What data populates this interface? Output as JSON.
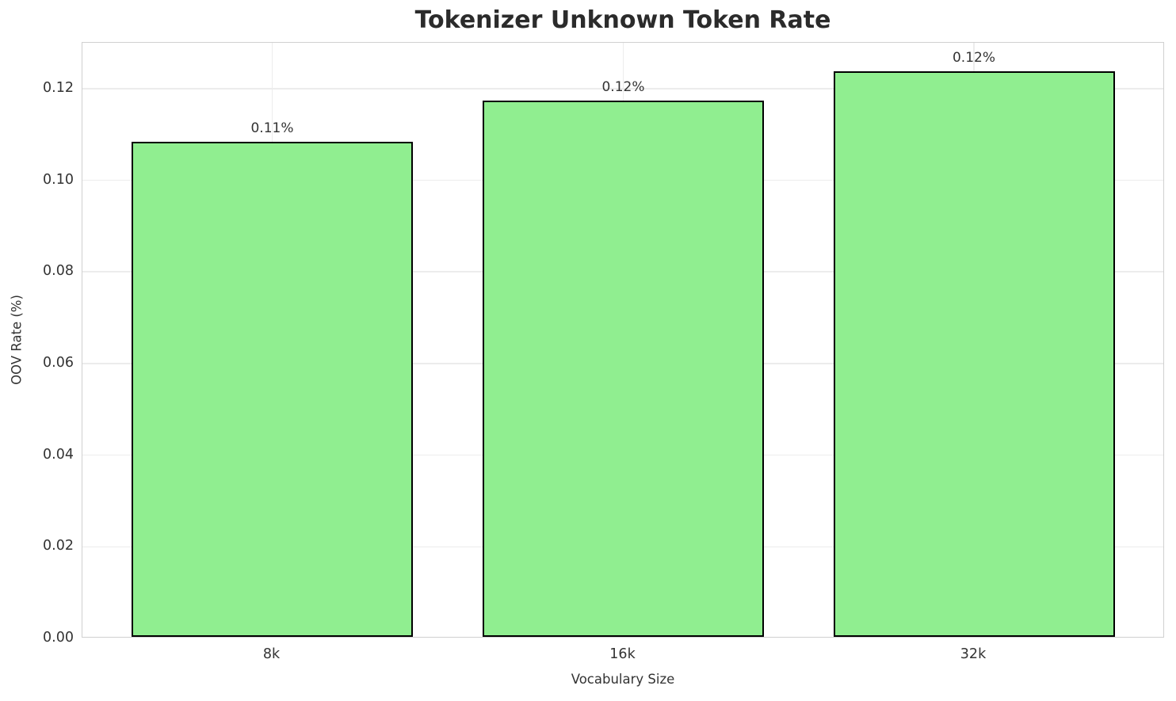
{
  "title": "Tokenizer Unknown Token Rate",
  "colors": {
    "bar_fill": "#90EE90",
    "bar_edge": "#000000",
    "grid": "#ececec",
    "spine": "#d0d0d0",
    "text": "#333333",
    "title_text": "#2b2b2b",
    "background": "#ffffff"
  },
  "chart_data": {
    "type": "bar",
    "title": "Tokenizer Unknown Token Rate",
    "xlabel": "Vocabulary Size",
    "ylabel": "OOV Rate (%)",
    "categories": [
      "8k",
      "16k",
      "32k"
    ],
    "values": [
      0.108,
      0.117,
      0.1235
    ],
    "bar_labels": [
      "0.11%",
      "0.12%",
      "0.12%"
    ],
    "ylim": [
      0,
      0.13
    ],
    "yticks": [
      {
        "value": 0.0,
        "label": "0.00"
      },
      {
        "value": 0.02,
        "label": "0.02"
      },
      {
        "value": 0.04,
        "label": "0.04"
      },
      {
        "value": 0.06,
        "label": "0.06"
      },
      {
        "value": 0.08,
        "label": "0.08"
      },
      {
        "value": 0.1,
        "label": "0.10"
      },
      {
        "value": 0.12,
        "label": "0.12"
      }
    ],
    "grid": true,
    "legend": false
  }
}
